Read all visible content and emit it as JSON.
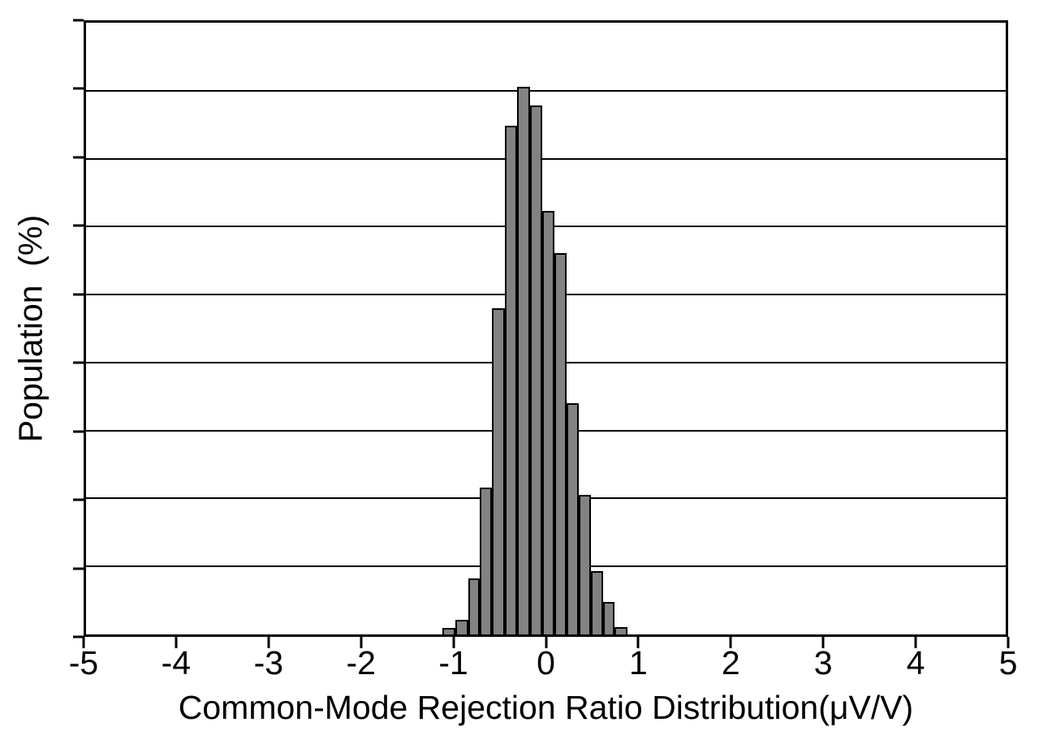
{
  "chart_data": {
    "type": "bar",
    "subtype": "histogram",
    "title": "",
    "xlabel": "Common-Mode Rejection Ratio Distribution(μV/V)",
    "ylabel": "Population (%)",
    "ylabel_display": "Population  (%)",
    "xlim": [
      -5,
      5
    ],
    "x_tick_labels": [
      "-5",
      "-4",
      "-3",
      "-2",
      "-1",
      "0",
      "1",
      "2",
      "3",
      "4",
      "5"
    ],
    "y_axis": {
      "numeric_labels_shown": false,
      "divisions": 9,
      "grid": "horizontal gridlines at every division"
    },
    "legend": "none",
    "bar_fill_color": "#828282",
    "bar_border_color": "#000000",
    "bin_edges": [
      -1.128,
      -0.988,
      -0.847,
      -0.716,
      -0.584,
      -0.443,
      -0.312,
      -0.171,
      -0.04,
      0.092,
      0.224,
      0.355,
      0.487,
      0.619,
      0.75,
      0.891
    ],
    "heights_fraction_of_y_axis": [
      0.011,
      0.024,
      0.091,
      0.24,
      0.533,
      0.832,
      0.895,
      0.865,
      0.692,
      0.624,
      0.378,
      0.228,
      0.104,
      0.053,
      0.012
    ],
    "notes": "Histogram of a roughly normal distribution centered slightly left of 0; y-axis has tick marks and gridlines but no numeric labels; peak bar reaches ~89.5% of the y-axis height just below the first gridline from the top."
  }
}
